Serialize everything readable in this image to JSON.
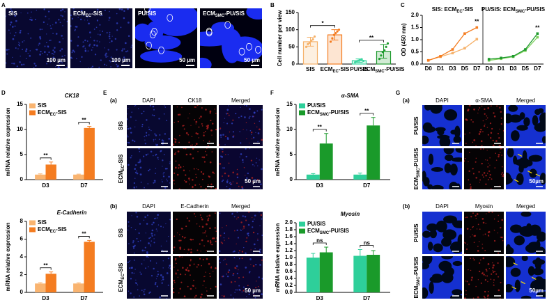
{
  "figure": {
    "A": {
      "label": "A",
      "images": [
        {
          "title": "SIS",
          "scale": "100 µm"
        },
        {
          "title": [
            "ECM",
            "EC",
            "-SIS"
          ],
          "scale": "100 µm"
        },
        {
          "title": "PU/SIS",
          "scale": "50 µm"
        },
        {
          "title": [
            "ECM",
            "SMC",
            "-PU/SIS"
          ],
          "scale": "50 µm"
        }
      ]
    },
    "E": {
      "label": "E",
      "blocks": [
        {
          "label": "(a)",
          "columns": [
            "DAPI",
            "CK18",
            "Merged"
          ],
          "rows": [
            "SIS",
            [
              "ECM",
              "EC",
              "-SIS"
            ]
          ],
          "scale": "50 µm"
        },
        {
          "label": "(b)",
          "columns": [
            "DAPI",
            "E-Cadherin",
            "Merged"
          ],
          "rows": [
            "SIS",
            [
              "ECM",
              "EC",
              "-SIS"
            ]
          ],
          "scale": "50 µm"
        }
      ]
    },
    "G": {
      "label": "G",
      "blocks": [
        {
          "label": "(a)",
          "columns": [
            "DAPI",
            "α-SMA",
            "Merged"
          ],
          "rows": [
            "PU/SIS",
            [
              "ECM",
              "SMC",
              "-PU/SIS"
            ]
          ],
          "scale": "50µm"
        },
        {
          "label": "(b)",
          "columns": [
            "DAPI",
            "Myosin",
            "Merged"
          ],
          "rows": [
            "PU/SIS",
            [
              "ECM",
              "SMC",
              "-PU/SIS"
            ]
          ],
          "scale": "50µm"
        }
      ]
    }
  },
  "chart_data": [
    {
      "type": "scatter_bar",
      "panel_label": "B",
      "ylabel": "Cell number per view",
      "categories": [
        "SIS",
        [
          "ECM",
          "EC",
          "-SIS"
        ],
        "PU/SIS",
        [
          "ECM",
          "SMC",
          "-PU/SIS"
        ]
      ],
      "colors": [
        "#f6b26b",
        "#f47c20",
        "#3ad6a0",
        "#1f9a2e"
      ],
      "values": [
        65,
        85,
        10,
        37
      ],
      "errors": [
        13,
        15,
        5,
        20
      ],
      "points": [
        [
          50,
          58,
          62,
          68,
          72,
          80
        ],
        [
          65,
          75,
          85,
          90,
          95,
          100
        ],
        [
          5,
          8,
          10,
          12,
          14,
          9
        ],
        [
          15,
          25,
          35,
          40,
          50,
          60
        ]
      ],
      "significance": [
        "*",
        "**"
      ],
      "ylim": [
        0,
        150
      ],
      "yticks": [
        0,
        50,
        100,
        150
      ]
    },
    {
      "type": "line",
      "panel_label": "C",
      "ylabel": "OD (450 nm)",
      "categories": [
        "D0",
        "D1",
        "D3",
        "D5",
        "D7"
      ],
      "ylim": [
        0,
        2
      ],
      "yticks": [
        {
          "value": 0,
          "label": "0.0"
        },
        {
          "value": 0.5,
          "label": "0.5"
        },
        {
          "value": 1,
          "label": "1.0"
        },
        {
          "value": 1.5,
          "label": "1.5"
        },
        {
          "value": 2,
          "label": "2.0"
        }
      ],
      "panels": [
        {
          "subtitle": [
            "SIS: ECM",
            "EC",
            "-SIS"
          ],
          "significance": "**",
          "series": [
            {
              "color": "#f6b26b",
              "values": [
                0.15,
                0.3,
                0.45,
                0.65,
                1.02
              ]
            },
            {
              "color": "#f47c20",
              "values": [
                0.15,
                0.32,
                0.6,
                1.25,
                1.5
              ]
            }
          ]
        },
        {
          "subtitle": [
            "PU/SIS: ECM",
            "SMC",
            "-PU/SIS"
          ],
          "significance": "**",
          "series": [
            {
              "color": "#7ccf5a",
              "values": [
                0.15,
                0.22,
                0.3,
                0.55,
                1.1
              ]
            },
            {
              "color": "#1f9a2e",
              "values": [
                0.2,
                0.25,
                0.32,
                0.6,
                1.25
              ]
            }
          ]
        }
      ]
    },
    {
      "type": "bar",
      "panel_label": "D",
      "title": "CK18",
      "ylabel": "mRNA relative expression",
      "categories": [
        "D3",
        "D7"
      ],
      "series": [
        {
          "name": "SIS",
          "color": "#f9b470",
          "values": [
            1.0,
            1.0
          ],
          "errors": [
            0.15,
            0.1
          ]
        },
        {
          "name": [
            "ECM",
            "EC",
            "-SIS"
          ],
          "color": "#f47c20",
          "values": [
            3.0,
            10.3
          ],
          "errors": [
            0.5,
            0.3
          ]
        }
      ],
      "significance": [
        "**",
        "**"
      ],
      "ylim": [
        0,
        15
      ],
      "yticks": [
        0,
        5,
        10,
        15
      ]
    },
    {
      "type": "bar",
      "title": "E-Cadherin",
      "ylabel": "mRNA relative expression",
      "categories": [
        "D3",
        "D7"
      ],
      "series": [
        {
          "name": "SIS",
          "color": "#f9b470",
          "values": [
            1.0,
            1.0
          ],
          "errors": [
            0.1,
            0.08
          ]
        },
        {
          "name": [
            "ECM",
            "EC",
            "-SIS"
          ],
          "color": "#f47c20",
          "values": [
            2.1,
            5.7
          ],
          "errors": [
            0.2,
            0.15
          ]
        }
      ],
      "significance": [
        "**",
        "**"
      ],
      "ylim": [
        0,
        8
      ],
      "yticks": [
        0,
        2,
        4,
        6,
        8
      ]
    },
    {
      "type": "bar",
      "panel_label": "F",
      "title": "α-SMA",
      "ylabel": "mRNA relative expression",
      "categories": [
        "D3",
        "D7"
      ],
      "series": [
        {
          "name": "PU/SIS",
          "color": "#2ecf9a",
          "values": [
            1.0,
            1.0
          ],
          "errors": [
            0.2,
            0.3
          ]
        },
        {
          "name": [
            "ECM",
            "SMC",
            "-PU/SIS"
          ],
          "color": "#1a9a2a",
          "values": [
            7.2,
            10.8
          ],
          "errors": [
            2.0,
            1.6
          ]
        }
      ],
      "significance": [
        "**",
        "**"
      ],
      "ylim": [
        0,
        15
      ],
      "yticks": [
        0,
        5,
        10,
        15
      ]
    },
    {
      "type": "bar",
      "title": "Myosin",
      "ylabel": "mRNA relative expression",
      "categories": [
        "D3",
        "D7"
      ],
      "series": [
        {
          "name": "PU/SIS",
          "color": "#2ecf9a",
          "values": [
            1.0,
            1.05
          ],
          "errors": [
            0.12,
            0.18
          ]
        },
        {
          "name": [
            "ECM",
            "SMC",
            "-PU/SIS"
          ],
          "color": "#1a9a2a",
          "values": [
            1.15,
            1.08
          ],
          "errors": [
            0.15,
            0.12
          ]
        }
      ],
      "significance": [
        "ns",
        "ns"
      ],
      "ylim": [
        0,
        2
      ],
      "yticks": [
        {
          "value": 0,
          "label": "0.0"
        },
        {
          "value": 0.2,
          "label": "0.2"
        },
        {
          "value": 0.4,
          "label": "0.4"
        },
        {
          "value": 0.6,
          "label": "0.6"
        },
        {
          "value": 0.8,
          "label": "0.8"
        },
        {
          "value": 1,
          "label": "1.0"
        },
        {
          "value": 1.2,
          "label": "1.2"
        },
        {
          "value": 1.4,
          "label": "1.4"
        },
        {
          "value": 1.6,
          "label": "1.6"
        },
        {
          "value": 1.8,
          "label": "1.8"
        },
        {
          "value": 2,
          "label": "2.0"
        }
      ]
    }
  ]
}
